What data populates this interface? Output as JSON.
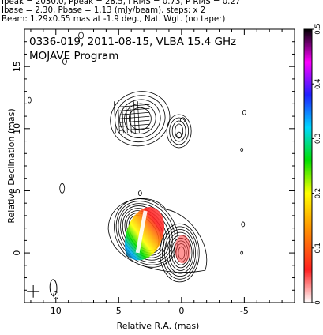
{
  "header_lines": [
    "Ipeak = 2030.0, Ppeak = 28.5, I RMS = 0.73, P RMS = 0.27",
    "Ibase = 2.30, Pbase = 1.13 (mJy/beam), steps: x 2",
    "Beam: 1.29x0.55 mas at -1.9 deg., Nat. Wgt. (no taper)"
  ],
  "chart_data": {
    "type": "heatmap",
    "title": "0336-019, 2011-08-15, VLBA 15.4 GHz",
    "subtitle": "MOJAVE Program",
    "xlabel": "Relative R.A. (mas)",
    "ylabel": "Relative Declination (mas)",
    "xlim": [
      12.5,
      -9.0
    ],
    "ylim": [
      -4.0,
      18.0
    ],
    "x_ticks": [
      10,
      5,
      0,
      -5
    ],
    "x_tick_labels": [
      "10",
      "5",
      "0",
      "-5"
    ],
    "y_ticks": [
      0,
      5,
      10,
      15
    ],
    "y_tick_labels": [
      "0",
      "5",
      "10",
      "15"
    ],
    "colorbar": {
      "min": 0,
      "max": 0.5,
      "ticks": [
        0,
        0.1,
        0.2,
        0.3,
        0.4,
        0.5
      ],
      "tick_labels": [
        "0",
        "0.1",
        "0.2",
        "0.3",
        "0.4",
        "0.5"
      ]
    },
    "core_position": [
      0,
      0
    ],
    "beam": {
      "major": 1.29,
      "minor": 0.55,
      "pa": -1.9
    }
  },
  "colors": {
    "contour": "#000000",
    "colorbar_stops": [
      "#ffffff",
      "#ff2020",
      "#ff9a00",
      "#ffff00",
      "#00e000",
      "#00d8ff",
      "#2020ff",
      "#ff00ff",
      "#000000"
    ]
  }
}
